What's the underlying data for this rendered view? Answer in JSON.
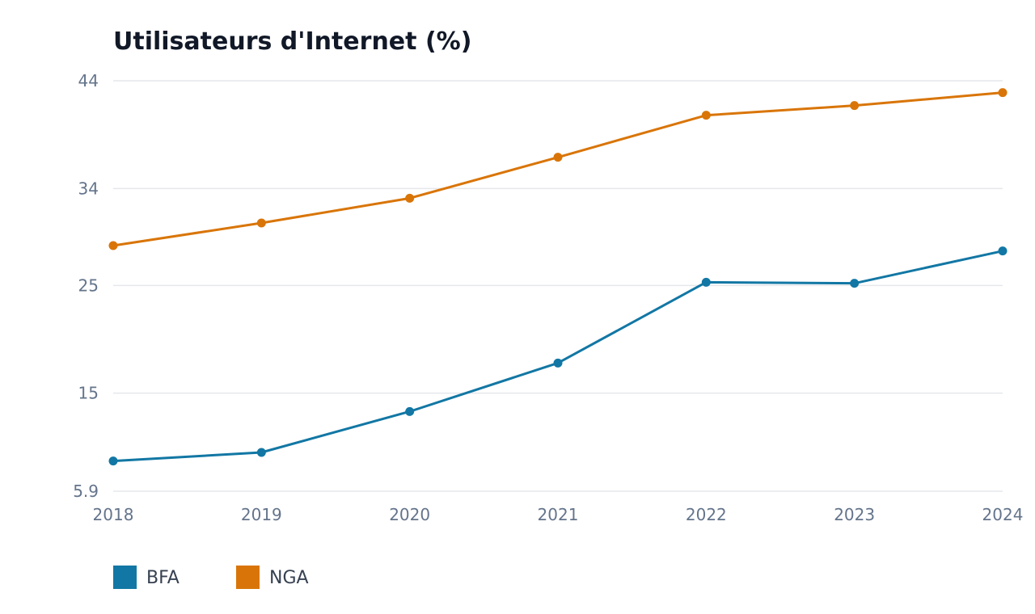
{
  "chart_data": {
    "type": "line",
    "title": "Utilisateurs d'Internet (%)",
    "xlabel": "",
    "ylabel": "",
    "categories": [
      "2018",
      "2019",
      "2020",
      "2021",
      "2022",
      "2023",
      "2024"
    ],
    "ylim": [
      5.9,
      44
    ],
    "yticks": [
      5.9,
      15,
      25,
      34,
      44
    ],
    "ytick_labels": [
      "5.9",
      "15",
      "25",
      "34",
      "44"
    ],
    "grid": true,
    "legend_position": "bottom-left",
    "series": [
      {
        "name": "BFA",
        "color": "#1277a4",
        "values": [
          8.7,
          9.5,
          13.3,
          17.8,
          25.3,
          25.2,
          28.2
        ]
      },
      {
        "name": "NGA",
        "color": "#d97508",
        "values": [
          28.7,
          30.8,
          33.1,
          36.9,
          40.8,
          41.7,
          42.9
        ]
      }
    ]
  }
}
